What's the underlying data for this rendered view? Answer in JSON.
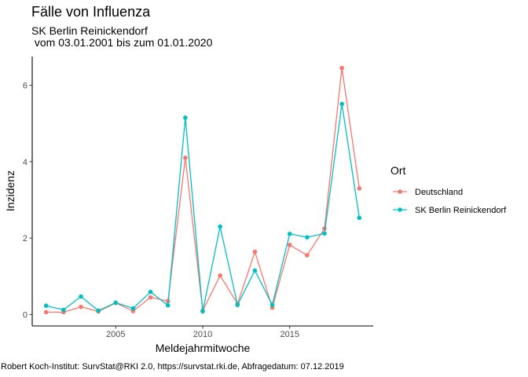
{
  "chart_data": {
    "type": "line",
    "title": "Fälle von Influenza",
    "subtitle_line1": "SK Berlin Reinickendorf",
    "subtitle_line2": " vom 03.01.2001 bis zum 01.01.2020",
    "xlabel": "Meldejahrmitwoche",
    "ylabel": "Inzidenz",
    "caption": "Robert Koch-Institut: SurvStat@RKI 2.0, https://survstat.rki.de, Abfragedatum: 07.12.2019",
    "xlim": [
      2000.2,
      2019.8
    ],
    "ylim": [
      -0.3,
      6.75
    ],
    "x_ticks": [
      2005,
      2010,
      2015
    ],
    "y_ticks": [
      0,
      2,
      4,
      6
    ],
    "legend_title": "Ort",
    "x": [
      2001,
      2002,
      2003,
      2004,
      2005,
      2006,
      2007,
      2008,
      2009,
      2010,
      2011,
      2012,
      2013,
      2014,
      2015,
      2016,
      2017,
      2018,
      2019
    ],
    "series": [
      {
        "name": "Deutschland",
        "color": "#F8766D",
        "values": [
          0.06,
          0.06,
          0.2,
          0.08,
          0.3,
          0.09,
          0.45,
          0.35,
          4.1,
          0.1,
          1.02,
          0.28,
          1.64,
          0.18,
          1.82,
          1.55,
          2.25,
          6.45,
          3.3
        ]
      },
      {
        "name": "SK Berlin Reinickendorf",
        "color": "#00BFC4",
        "values": [
          0.23,
          0.12,
          0.47,
          0.1,
          0.31,
          0.16,
          0.59,
          0.24,
          5.15,
          0.08,
          2.3,
          0.25,
          1.15,
          0.25,
          2.11,
          2.02,
          2.12,
          5.51,
          2.53
        ]
      }
    ]
  }
}
